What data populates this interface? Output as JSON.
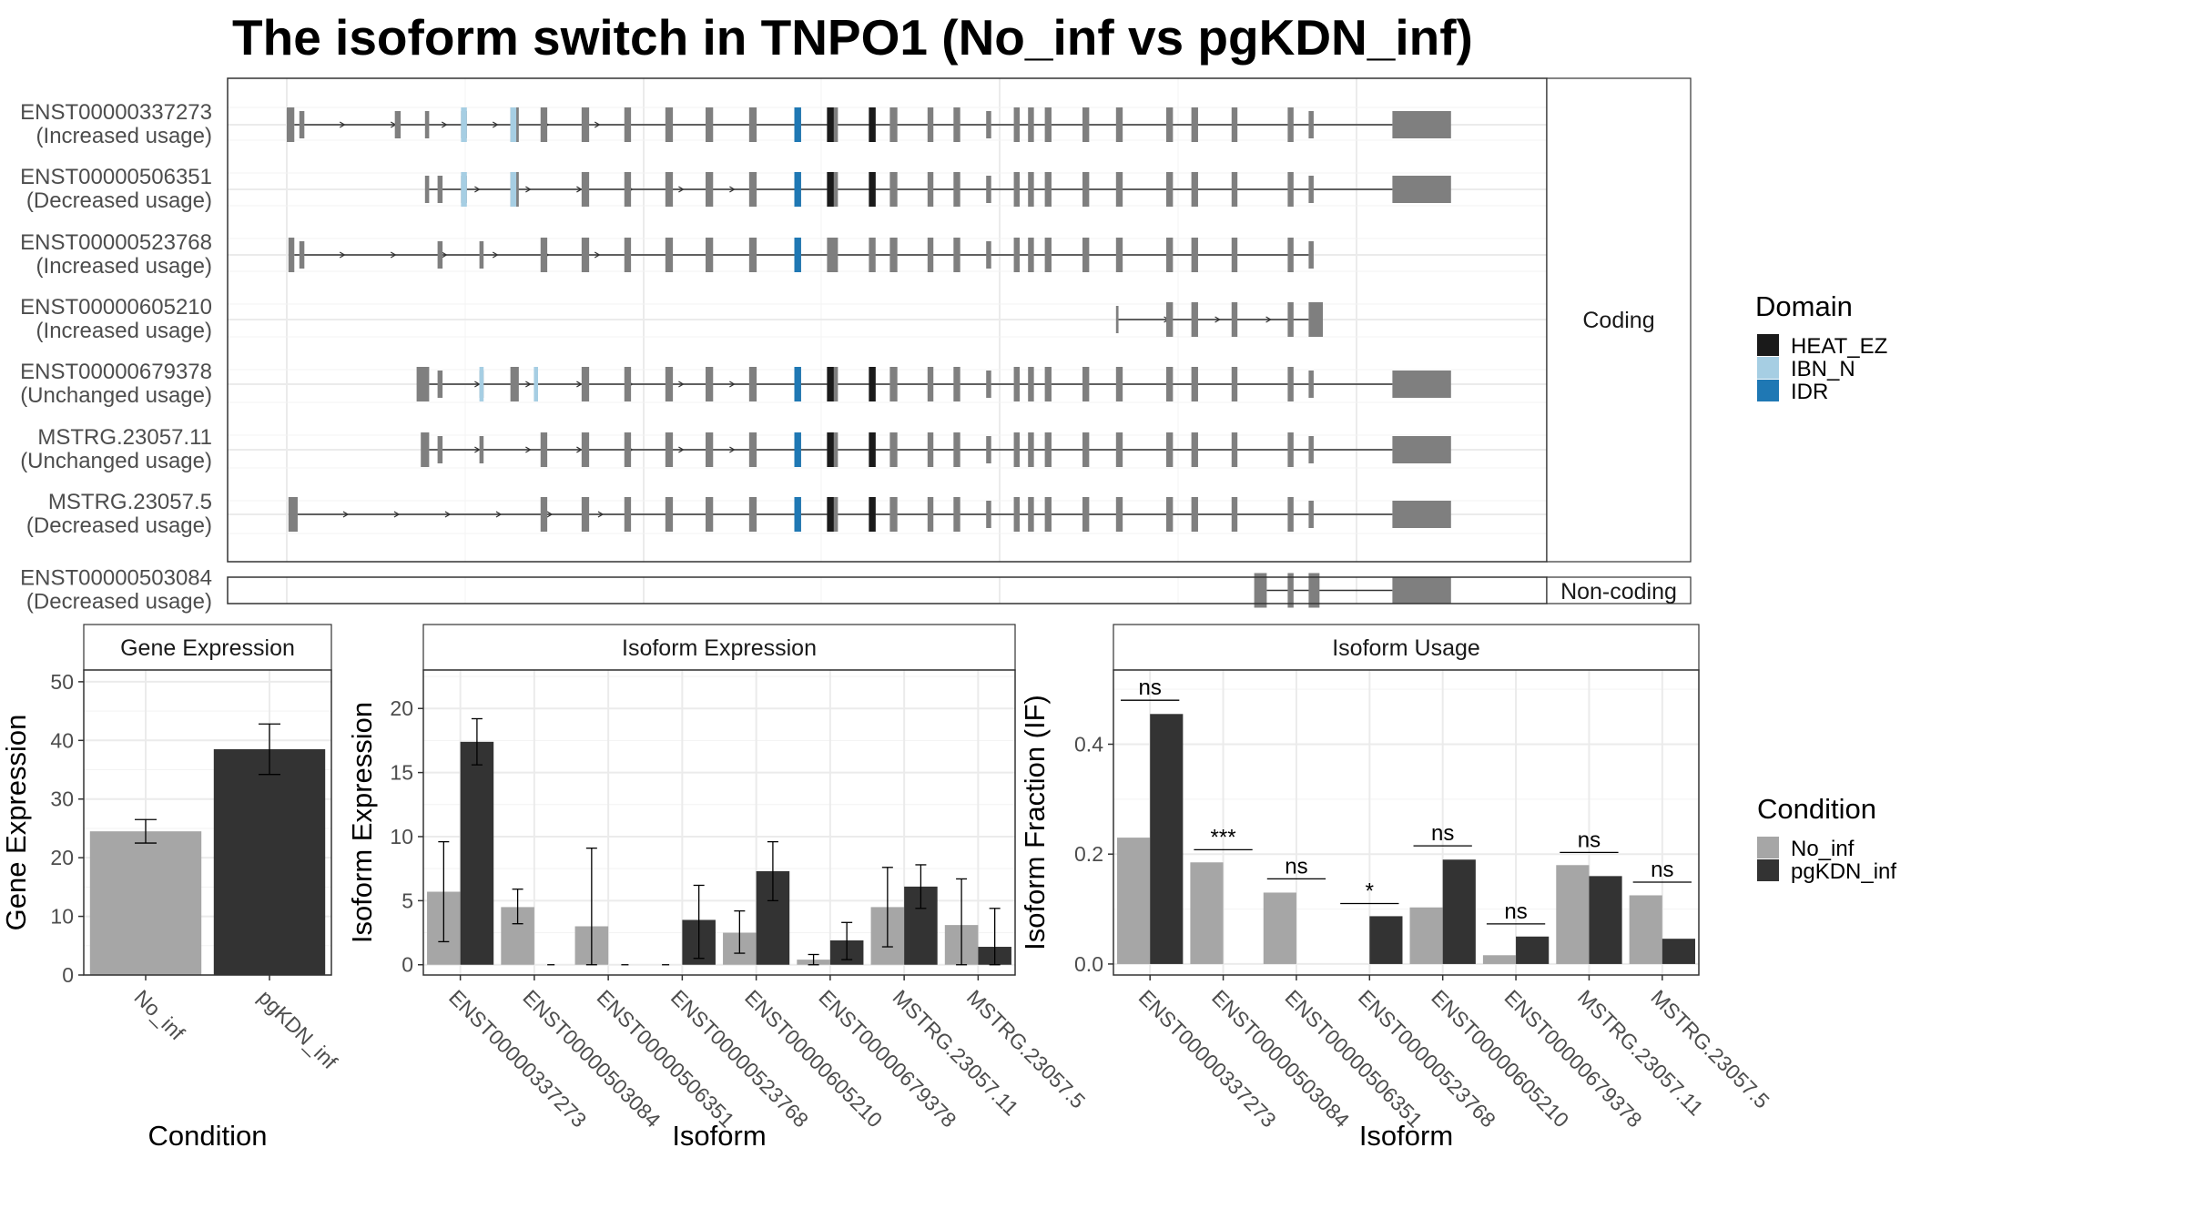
{
  "title": "The isoform switch in TNPO1 (No_inf vs pgKDN_inf)",
  "colors": {
    "exon": "#7f7f7f",
    "heat": "#1a1a1a",
    "ibn": "#a6cee3",
    "idr": "#1f78b4",
    "no_inf": "#a6a6a6",
    "pgkdn_inf": "#333333",
    "grid": "#ebebeb",
    "panel_border": "#333333"
  },
  "structure": {
    "coding_strip": "Coding",
    "noncoding_strip": "Non-coding",
    "isoforms": [
      {
        "id": "ENST00000337273",
        "usage": "(Increased usage)",
        "type": "coding",
        "exons": [
          [
            0.0,
            0.9
          ],
          [
            1.5,
            2.1
          ],
          [
            12.9,
            13.6
          ],
          [
            16.5,
            17.0
          ],
          [
            20.8,
            21.5
          ],
          [
            26.7,
            27.7
          ],
          [
            30.3,
            31.1
          ],
          [
            35.2,
            36.1
          ],
          [
            40.3,
            41.1
          ],
          [
            45.2,
            46.1
          ],
          [
            50.0,
            50.9
          ],
          [
            55.2,
            56.1
          ],
          [
            60.6,
            61.4
          ],
          [
            64.5,
            65.8
          ],
          [
            69.5,
            70.3
          ],
          [
            72.0,
            72.9
          ],
          [
            76.5,
            77.2
          ],
          [
            79.6,
            80.4
          ],
          [
            83.5,
            84.1
          ],
          [
            86.8,
            87.5
          ],
          [
            88.5,
            89.2
          ],
          [
            90.5,
            91.3
          ],
          [
            95.0,
            95.8
          ],
          [
            99.0,
            99.8
          ],
          [
            105.0,
            105.8
          ],
          [
            108.0,
            108.8
          ],
          [
            112.8,
            113.5
          ],
          [
            119.5,
            120.2
          ],
          [
            122.0,
            122.6
          ],
          [
            132.0,
            139.0
          ]
        ],
        "introns": [
          [
            0.9,
            122.6
          ],
          [
            122.6,
            132.0
          ]
        ],
        "domains": [
          {
            "name": "IBN_N",
            "start": 20.8,
            "end": 21.5
          },
          {
            "name": "IBN_N",
            "start": 26.7,
            "end": 27.4
          },
          {
            "name": "IDR",
            "start": 60.6,
            "end": 61.4
          },
          {
            "name": "HEAT_EZ",
            "start": 64.5,
            "end": 65.3
          },
          {
            "name": "HEAT_EZ",
            "start": 69.5,
            "end": 70.3
          }
        ]
      },
      {
        "id": "ENST00000506351",
        "usage": "(Decreased usage)",
        "type": "coding",
        "exons": [
          [
            16.5,
            17.0
          ],
          [
            18.0,
            18.6
          ],
          [
            20.8,
            21.5
          ],
          [
            26.7,
            27.7
          ],
          [
            35.2,
            36.1
          ],
          [
            40.3,
            41.1
          ],
          [
            45.2,
            46.1
          ],
          [
            50.0,
            50.9
          ],
          [
            55.2,
            56.1
          ],
          [
            60.6,
            61.4
          ],
          [
            64.5,
            65.8
          ],
          [
            69.5,
            70.3
          ],
          [
            72.0,
            72.9
          ],
          [
            76.5,
            77.2
          ],
          [
            79.6,
            80.4
          ],
          [
            83.5,
            84.1
          ],
          [
            86.8,
            87.5
          ],
          [
            88.5,
            89.2
          ],
          [
            90.5,
            91.3
          ],
          [
            95.0,
            95.8
          ],
          [
            99.0,
            99.8
          ],
          [
            105.0,
            105.8
          ],
          [
            108.0,
            108.8
          ],
          [
            112.8,
            113.5
          ],
          [
            119.5,
            120.2
          ],
          [
            122.0,
            122.6
          ],
          [
            132.0,
            139.0
          ]
        ],
        "introns": [
          [
            17.0,
            132.0
          ]
        ],
        "domains": [
          {
            "name": "IBN_N",
            "start": 20.8,
            "end": 21.5
          },
          {
            "name": "IBN_N",
            "start": 26.7,
            "end": 27.4
          },
          {
            "name": "IDR",
            "start": 60.6,
            "end": 61.4
          },
          {
            "name": "HEAT_EZ",
            "start": 64.5,
            "end": 65.3
          },
          {
            "name": "HEAT_EZ",
            "start": 69.5,
            "end": 70.3
          }
        ]
      },
      {
        "id": "ENST00000523768",
        "usage": "(Increased usage)",
        "type": "coding",
        "exons": [
          [
            0.2,
            0.9
          ],
          [
            1.5,
            2.1
          ],
          [
            18.0,
            18.6
          ],
          [
            23.0,
            23.5
          ],
          [
            30.3,
            31.1
          ],
          [
            35.2,
            36.1
          ],
          [
            40.3,
            41.1
          ],
          [
            45.2,
            46.1
          ],
          [
            50.0,
            50.9
          ],
          [
            55.2,
            56.1
          ],
          [
            60.6,
            61.4
          ],
          [
            64.5,
            65.8
          ],
          [
            69.5,
            70.3
          ],
          [
            72.0,
            72.9
          ],
          [
            76.5,
            77.2
          ],
          [
            79.6,
            80.4
          ],
          [
            83.5,
            84.1
          ],
          [
            86.8,
            87.5
          ],
          [
            88.5,
            89.2
          ],
          [
            90.5,
            91.3
          ],
          [
            95.0,
            95.8
          ],
          [
            99.0,
            99.8
          ],
          [
            105.0,
            105.8
          ],
          [
            108.0,
            108.8
          ],
          [
            112.8,
            113.5
          ],
          [
            119.5,
            120.2
          ],
          [
            122.0,
            122.6
          ]
        ],
        "introns": [
          [
            0.9,
            122.0
          ]
        ],
        "domains": [
          {
            "name": "IDR",
            "start": 60.6,
            "end": 61.4
          }
        ]
      },
      {
        "id": "ENST00000605210",
        "usage": "(Increased usage)",
        "type": "coding",
        "exons": [
          [
            99.0,
            99.3
          ],
          [
            105.0,
            105.8
          ],
          [
            108.0,
            108.8
          ],
          [
            112.8,
            113.5
          ],
          [
            119.5,
            120.2
          ],
          [
            122.0,
            123.7
          ]
        ],
        "introns": [
          [
            99.3,
            122.0
          ]
        ],
        "domains": []
      },
      {
        "id": "ENST00000679378",
        "usage": "(Unchanged usage)",
        "type": "coding",
        "exons": [
          [
            15.5,
            17.0
          ],
          [
            18.0,
            18.6
          ],
          [
            23.0,
            23.5
          ],
          [
            26.7,
            27.7
          ],
          [
            35.2,
            36.1
          ],
          [
            40.3,
            41.1
          ],
          [
            45.2,
            46.1
          ],
          [
            50.0,
            50.9
          ],
          [
            55.2,
            56.1
          ],
          [
            60.6,
            61.4
          ],
          [
            64.5,
            65.8
          ],
          [
            69.5,
            70.3
          ],
          [
            72.0,
            72.9
          ],
          [
            76.5,
            77.2
          ],
          [
            79.6,
            80.4
          ],
          [
            83.5,
            84.1
          ],
          [
            86.8,
            87.5
          ],
          [
            88.5,
            89.2
          ],
          [
            90.5,
            91.3
          ],
          [
            95.0,
            95.8
          ],
          [
            99.0,
            99.8
          ],
          [
            105.0,
            105.8
          ],
          [
            108.0,
            108.8
          ],
          [
            112.8,
            113.5
          ],
          [
            119.5,
            120.2
          ],
          [
            122.0,
            122.6
          ],
          [
            132.0,
            139.0
          ]
        ],
        "introns": [
          [
            17.0,
            132.0
          ]
        ],
        "domains": [
          {
            "name": "IBN_N",
            "start": 23.0,
            "end": 23.5
          },
          {
            "name": "IBN_N",
            "start": 29.5,
            "end": 30.0
          },
          {
            "name": "IDR",
            "start": 60.6,
            "end": 61.4
          },
          {
            "name": "HEAT_EZ",
            "start": 64.5,
            "end": 65.3
          },
          {
            "name": "HEAT_EZ",
            "start": 69.5,
            "end": 70.3
          }
        ]
      },
      {
        "id": "MSTRG.23057.11",
        "usage": "(Unchanged usage)",
        "type": "coding",
        "exons": [
          [
            16.0,
            17.0
          ],
          [
            18.0,
            18.6
          ],
          [
            23.0,
            23.5
          ],
          [
            30.3,
            31.1
          ],
          [
            35.2,
            36.1
          ],
          [
            40.3,
            41.1
          ],
          [
            45.2,
            46.1
          ],
          [
            50.0,
            50.9
          ],
          [
            55.2,
            56.1
          ],
          [
            60.6,
            61.4
          ],
          [
            64.5,
            65.8
          ],
          [
            69.5,
            70.3
          ],
          [
            72.0,
            72.9
          ],
          [
            76.5,
            77.2
          ],
          [
            79.6,
            80.4
          ],
          [
            83.5,
            84.1
          ],
          [
            86.8,
            87.5
          ],
          [
            88.5,
            89.2
          ],
          [
            90.5,
            91.3
          ],
          [
            95.0,
            95.8
          ],
          [
            99.0,
            99.8
          ],
          [
            105.0,
            105.8
          ],
          [
            108.0,
            108.8
          ],
          [
            112.8,
            113.5
          ],
          [
            119.5,
            120.2
          ],
          [
            122.0,
            122.6
          ],
          [
            132.0,
            139.0
          ]
        ],
        "introns": [
          [
            17.0,
            132.0
          ]
        ],
        "domains": [
          {
            "name": "IDR",
            "start": 60.6,
            "end": 61.4
          },
          {
            "name": "HEAT_EZ",
            "start": 64.5,
            "end": 65.3
          },
          {
            "name": "HEAT_EZ",
            "start": 69.5,
            "end": 70.3
          }
        ]
      },
      {
        "id": "MSTRG.23057.5",
        "usage": "(Decreased usage)",
        "type": "coding",
        "exons": [
          [
            0.2,
            1.3
          ],
          [
            30.3,
            31.1
          ],
          [
            35.2,
            36.1
          ],
          [
            40.3,
            41.1
          ],
          [
            45.2,
            46.1
          ],
          [
            50.0,
            50.9
          ],
          [
            55.2,
            56.1
          ],
          [
            60.6,
            61.4
          ],
          [
            64.5,
            65.8
          ],
          [
            69.5,
            70.3
          ],
          [
            72.0,
            72.9
          ],
          [
            76.5,
            77.2
          ],
          [
            79.6,
            80.4
          ],
          [
            83.5,
            84.1
          ],
          [
            86.8,
            87.5
          ],
          [
            88.5,
            89.2
          ],
          [
            90.5,
            91.3
          ],
          [
            95.0,
            95.8
          ],
          [
            99.0,
            99.8
          ],
          [
            105.0,
            105.8
          ],
          [
            108.0,
            108.8
          ],
          [
            112.8,
            113.5
          ],
          [
            119.5,
            120.2
          ],
          [
            122.0,
            122.6
          ],
          [
            132.0,
            139.0
          ]
        ],
        "introns": [
          [
            1.3,
            132.0
          ]
        ],
        "domains": [
          {
            "name": "IDR",
            "start": 60.6,
            "end": 61.4
          },
          {
            "name": "HEAT_EZ",
            "start": 64.5,
            "end": 65.3
          },
          {
            "name": "HEAT_EZ",
            "start": 69.5,
            "end": 70.3
          }
        ]
      },
      {
        "id": "ENST00000503084",
        "usage": "(Decreased usage)",
        "type": "noncoding",
        "exons": [
          [
            115.5,
            117.0
          ],
          [
            119.5,
            120.2
          ],
          [
            122.0,
            123.3
          ],
          [
            132.0,
            139.0
          ]
        ],
        "introns": [
          [
            117.0,
            132.0
          ]
        ],
        "domains": []
      }
    ]
  },
  "chart_data": [
    {
      "type": "bar",
      "title": "Gene Expression",
      "xlabel": "Condition",
      "ylabel": "Gene Expression",
      "categories": [
        "No_inf",
        "pgKDN_inf"
      ],
      "values": [
        24.5,
        38.5
      ],
      "errors": [
        [
          22.5,
          26.5
        ],
        [
          34.2,
          42.8
        ]
      ],
      "ylim": [
        0,
        52
      ],
      "yticks": [
        0,
        10,
        20,
        30,
        40,
        50
      ]
    },
    {
      "type": "bar",
      "title": "Isoform Expression",
      "xlabel": "Isoform",
      "ylabel": "Isoform Expression",
      "categories": [
        "ENST00000337273",
        "ENST00000503084",
        "ENST00000506351",
        "ENST00000523768",
        "ENST00000605210",
        "ENST00000679378",
        "MSTRG.23057.11",
        "MSTRG.23057.5"
      ],
      "series": [
        {
          "name": "No_inf",
          "values": [
            5.7,
            4.5,
            3.0,
            0.0,
            2.5,
            0.4,
            4.5,
            3.1
          ],
          "errors": [
            [
              1.8,
              9.6
            ],
            [
              3.2,
              5.9
            ],
            [
              0.0,
              9.1
            ],
            [
              0.0,
              0.0
            ],
            [
              0.9,
              4.2
            ],
            [
              0.0,
              0.8
            ],
            [
              1.4,
              7.6
            ],
            [
              0.0,
              6.7
            ]
          ]
        },
        {
          "name": "pgKDN_inf",
          "values": [
            17.4,
            0.0,
            0.0,
            3.5,
            7.3,
            1.9,
            6.1,
            1.4
          ],
          "errors": [
            [
              15.6,
              19.2
            ],
            [
              0.0,
              0.0
            ],
            [
              0.0,
              0.0
            ],
            [
              0.5,
              6.2
            ],
            [
              5.0,
              9.6
            ],
            [
              0.4,
              3.3
            ],
            [
              4.4,
              7.8
            ],
            [
              0.0,
              4.4
            ]
          ]
        }
      ],
      "ylim": [
        -0.8,
        23
      ],
      "yticks": [
        0,
        5,
        10,
        15,
        20
      ]
    },
    {
      "type": "bar",
      "title": "Isoform Usage",
      "xlabel": "Isoform",
      "ylabel": "Isoform Fraction (IF)",
      "categories": [
        "ENST00000337273",
        "ENST00000503084",
        "ENST00000506351",
        "ENST00000523768",
        "ENST00000605210",
        "ENST00000679378",
        "MSTRG.23057.11",
        "MSTRG.23057.5"
      ],
      "series": [
        {
          "name": "No_inf",
          "values": [
            0.23,
            0.185,
            0.13,
            0.0,
            0.103,
            0.016,
            0.18,
            0.125
          ]
        },
        {
          "name": "pgKDN_inf",
          "values": [
            0.455,
            0.0,
            0.0,
            0.087,
            0.19,
            0.05,
            0.16,
            0.046
          ]
        }
      ],
      "significance": [
        "ns",
        "***",
        "ns",
        "*",
        "ns",
        "ns",
        "ns",
        "ns"
      ],
      "sig_y": [
        0.48,
        0.208,
        0.155,
        0.11,
        0.215,
        0.073,
        0.203,
        0.149
      ],
      "ylim": [
        -0.02,
        0.535
      ],
      "yticks": [
        0.0,
        0.2,
        0.4
      ],
      "ytick_labels": [
        "0.0",
        "0.2",
        "0.4"
      ]
    }
  ],
  "legends": {
    "domain": {
      "title": "Domain",
      "items": [
        {
          "label": "HEAT_EZ",
          "key": "heat"
        },
        {
          "label": "IBN_N",
          "key": "ibn"
        },
        {
          "label": "IDR",
          "key": "idr"
        }
      ]
    },
    "condition": {
      "title": "Condition",
      "items": [
        {
          "label": "No_inf",
          "key": "no_inf"
        },
        {
          "label": "pgKDN_inf",
          "key": "pgkdn_inf"
        }
      ]
    }
  }
}
